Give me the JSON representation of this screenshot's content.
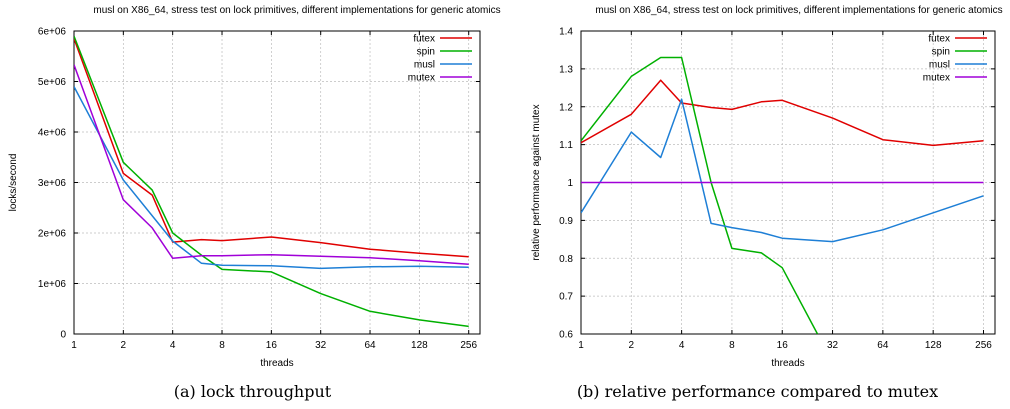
{
  "captions": [
    "(a) lock throughput",
    "(b) relative performance compared to mutex"
  ],
  "chart_data": [
    {
      "type": "line",
      "title": "musl on X86_64, stress test on lock primitives, different implementations for generic atomics",
      "xlabel": "threads",
      "ylabel": "locks/second",
      "x_scale": "log2",
      "xlim": [
        1,
        300
      ],
      "ylim": [
        0,
        6000000
      ],
      "x_ticks": [
        1,
        2,
        4,
        8,
        16,
        32,
        64,
        128,
        256
      ],
      "x_tick_labels": [
        "1",
        "2",
        "4",
        "8",
        "16",
        "32",
        "64",
        "128",
        "256"
      ],
      "y_ticks": [
        0,
        1000000,
        2000000,
        3000000,
        4000000,
        5000000,
        6000000
      ],
      "y_tick_labels": [
        "0",
        "1e+06",
        "2e+06",
        "3e+06",
        "4e+06",
        "5e+06",
        "6e+06"
      ],
      "grid": true,
      "legend_position": "top-right",
      "series": [
        {
          "name": "futex",
          "color": "#e00000",
          "x": [
            1,
            2,
            3,
            4,
            6,
            8,
            16,
            32,
            64,
            128,
            256
          ],
          "values": [
            5850000,
            3180000,
            2750000,
            1820000,
            1870000,
            1850000,
            1920000,
            1810000,
            1680000,
            1600000,
            1530000
          ]
        },
        {
          "name": "spin",
          "color": "#00b000",
          "x": [
            1,
            2,
            3,
            4,
            6,
            8,
            16,
            32,
            64,
            128,
            256
          ],
          "values": [
            5900000,
            3400000,
            2850000,
            2000000,
            1560000,
            1280000,
            1230000,
            800000,
            450000,
            280000,
            150000
          ]
        },
        {
          "name": "musl",
          "color": "#1e7fd6",
          "x": [
            1,
            2,
            4,
            6,
            8,
            16,
            32,
            64,
            128,
            256
          ],
          "values": [
            4900000,
            3050000,
            1840000,
            1400000,
            1360000,
            1350000,
            1300000,
            1330000,
            1340000,
            1320000
          ]
        },
        {
          "name": "mutex",
          "color": "#a000d8",
          "x": [
            1,
            2,
            3,
            4,
            6,
            8,
            16,
            32,
            64,
            128,
            256
          ],
          "values": [
            5330000,
            2660000,
            2100000,
            1500000,
            1550000,
            1550000,
            1570000,
            1540000,
            1510000,
            1450000,
            1380000
          ]
        }
      ]
    },
    {
      "type": "line",
      "title": "musl on X86_64, stress test on lock primitives, different implementations for generic atomics",
      "xlabel": "threads",
      "ylabel": "relative performance against mutex",
      "x_scale": "log2",
      "xlim": [
        1,
        300
      ],
      "ylim": [
        0.6,
        1.4
      ],
      "x_ticks": [
        1,
        2,
        4,
        8,
        16,
        32,
        64,
        128,
        256
      ],
      "x_tick_labels": [
        "1",
        "2",
        "4",
        "8",
        "16",
        "32",
        "64",
        "128",
        "256"
      ],
      "y_ticks": [
        0.6,
        0.7,
        0.8,
        0.9,
        1.0,
        1.1,
        1.2,
        1.3,
        1.4
      ],
      "y_tick_labels": [
        "0.6",
        "0.7",
        "0.8",
        "0.9",
        "1",
        "1.1",
        "1.2",
        "1.3",
        "1.4"
      ],
      "grid": true,
      "legend_position": "top-right",
      "series": [
        {
          "name": "futex",
          "color": "#e00000",
          "x": [
            1,
            2,
            3,
            4,
            6,
            8,
            12,
            16,
            32,
            64,
            128,
            256
          ],
          "values": [
            1.105,
            1.18,
            1.27,
            1.21,
            1.198,
            1.193,
            1.213,
            1.217,
            1.17,
            1.113,
            1.098,
            1.11
          ]
        },
        {
          "name": "spin",
          "color": "#00b000",
          "x": [
            1,
            2,
            3,
            4,
            6,
            8,
            12,
            16,
            26
          ],
          "values": [
            1.11,
            1.28,
            1.33,
            1.33,
            1.0,
            0.826,
            0.814,
            0.775,
            0.6
          ]
        },
        {
          "name": "musl",
          "color": "#1e7fd6",
          "x": [
            1,
            2,
            3,
            4,
            6,
            8,
            12,
            16,
            32,
            64,
            128,
            256
          ],
          "values": [
            0.92,
            1.133,
            1.066,
            1.22,
            0.892,
            0.881,
            0.868,
            0.853,
            0.844,
            0.875,
            0.92,
            0.965
          ]
        },
        {
          "name": "mutex",
          "color": "#a000d8",
          "x": [
            1,
            256
          ],
          "values": [
            1.0,
            1.0
          ]
        }
      ]
    }
  ]
}
